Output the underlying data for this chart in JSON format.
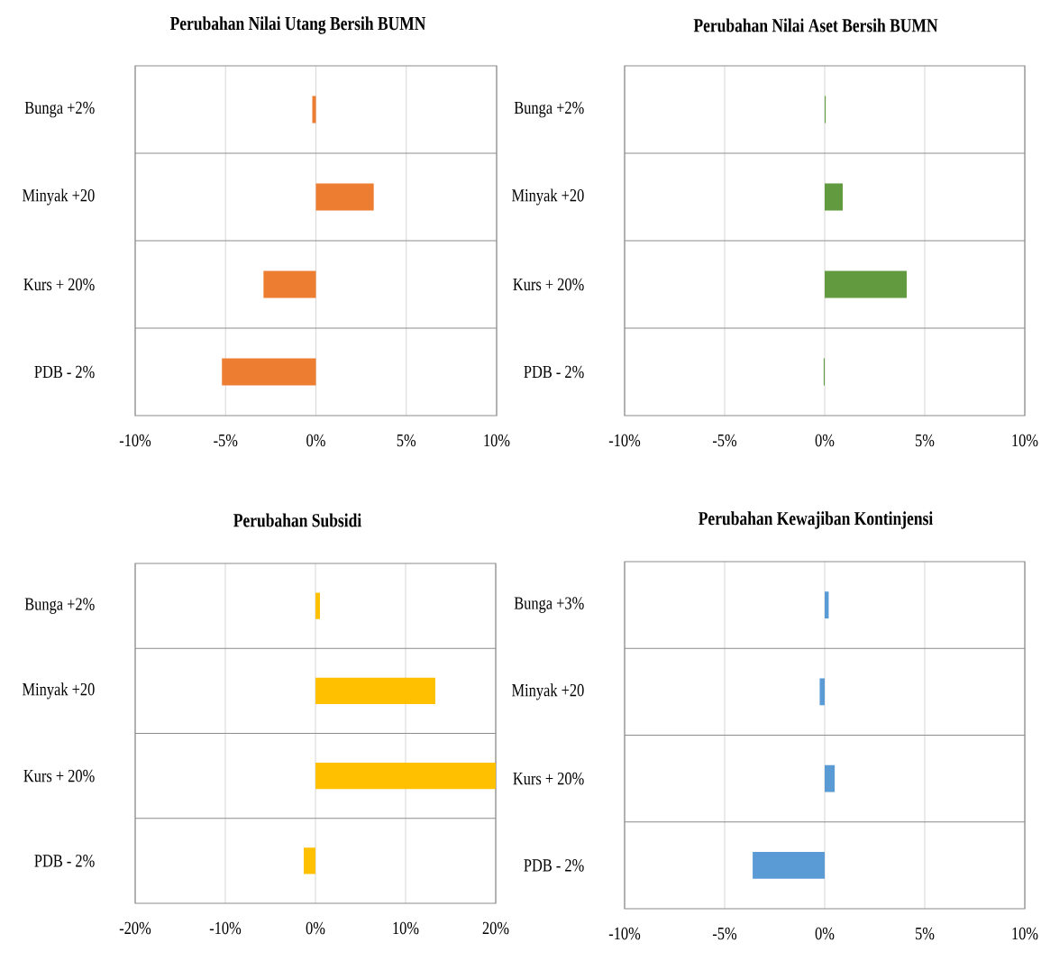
{
  "chart_data": [
    {
      "type": "bar",
      "orientation": "horizontal",
      "title": "Perubahan Nilai Utang Bersih BUMN",
      "categories": [
        "Bunga +2%",
        "Minyak +20",
        "Kurs + 20%",
        "PDB - 2%"
      ],
      "values": [
        -0.2,
        3.2,
        -2.9,
        -5.2
      ],
      "color": "#ed7d31",
      "xlim": [
        -10,
        10
      ],
      "xticks": [
        {
          "value": -10,
          "label": "-10%"
        },
        {
          "value": -5,
          "label": "-5%"
        },
        {
          "value": 0,
          "label": "0%"
        },
        {
          "value": 5,
          "label": "5%"
        },
        {
          "value": 10,
          "label": "10%"
        }
      ],
      "grid": "x"
    },
    {
      "type": "bar",
      "orientation": "horizontal",
      "title": "Perubahan Nilai Aset Bersih BUMN",
      "categories": [
        "Bunga +2%",
        "Minyak +20",
        "Kurs + 20%",
        "PDB - 2%"
      ],
      "values": [
        0.05,
        0.9,
        4.1,
        -0.05
      ],
      "color": "#629a3f",
      "xlim": [
        -10,
        10
      ],
      "xticks": [
        {
          "value": -10,
          "label": "-10%"
        },
        {
          "value": -5,
          "label": "-5%"
        },
        {
          "value": 0,
          "label": "0%"
        },
        {
          "value": 5,
          "label": "5%"
        },
        {
          "value": 10,
          "label": "10%"
        }
      ],
      "grid": "x"
    },
    {
      "type": "bar",
      "orientation": "horizontal",
      "title": "Perubahan Subsidi",
      "categories": [
        "Bunga +2%",
        "Minyak +20",
        "Kurs + 20%",
        "PDB - 2%"
      ],
      "values": [
        0.5,
        13.3,
        20,
        -1.3
      ],
      "color": "#ffc000",
      "xlim": [
        -20,
        20
      ],
      "xticks": [
        {
          "value": -20,
          "label": "-20%"
        },
        {
          "value": -10,
          "label": "-10%"
        },
        {
          "value": 0,
          "label": "0%"
        },
        {
          "value": 10,
          "label": "10%"
        },
        {
          "value": 20,
          "label": "20%"
        }
      ],
      "grid": "x"
    },
    {
      "type": "bar",
      "orientation": "horizontal",
      "title": "Perubahan Kewajiban Kontinjensi",
      "categories": [
        "Bunga +3%",
        "Minyak +20",
        "Kurs + 20%",
        "PDB - 2%"
      ],
      "values": [
        0.2,
        -0.25,
        0.5,
        -3.6
      ],
      "color": "#5b9bd5",
      "xlim": [
        -10,
        10
      ],
      "xticks": [
        {
          "value": -10,
          "label": "-10%"
        },
        {
          "value": -5,
          "label": "-5%"
        },
        {
          "value": 0,
          "label": "0%"
        },
        {
          "value": 5,
          "label": "5%"
        },
        {
          "value": 10,
          "label": "10%"
        }
      ],
      "grid": "x"
    }
  ]
}
